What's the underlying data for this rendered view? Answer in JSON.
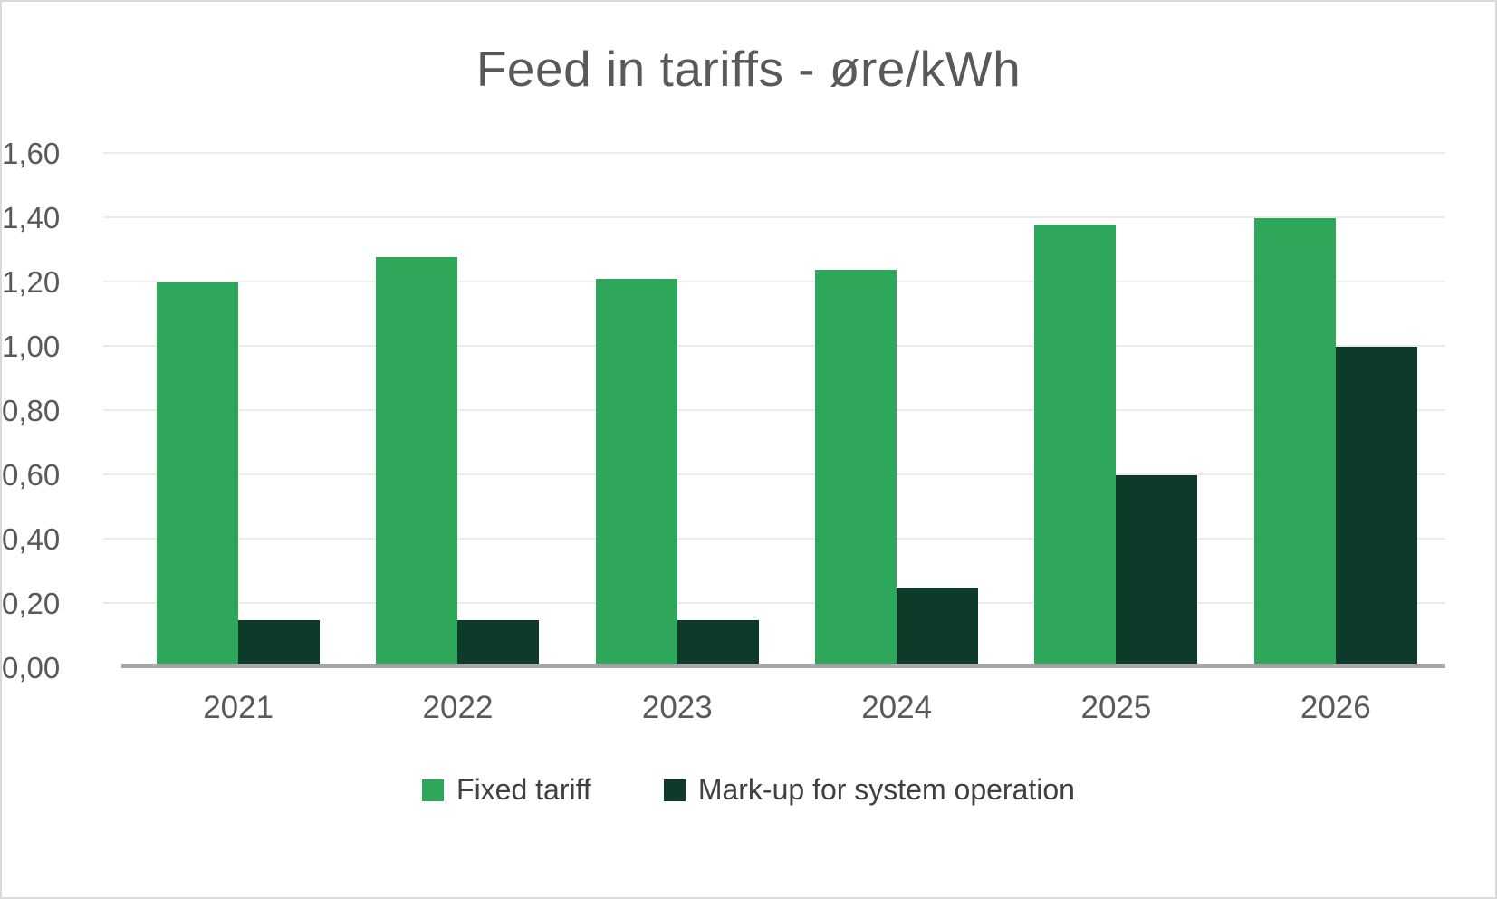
{
  "title": "Feed in tariffs - øre/kWh",
  "chart_data": {
    "type": "bar",
    "title": "Feed in tariffs - øre/kWh",
    "categories": [
      "2021",
      "2022",
      "2023",
      "2024",
      "2025",
      "2026"
    ],
    "series": [
      {
        "name": "Fixed tariff",
        "color": "#2ea75b",
        "values": [
          1.2,
          1.28,
          1.21,
          1.24,
          1.38,
          1.4
        ]
      },
      {
        "name": "Mark-up for system operation",
        "color": "#0d3b2a",
        "values": [
          0.15,
          0.15,
          0.15,
          0.25,
          0.6,
          1.0
        ]
      }
    ],
    "xlabel": "",
    "ylabel": "",
    "ylim": [
      0,
      1.6
    ],
    "ytick_step": 0.2,
    "ytick_labels": [
      "0,00",
      "0,20",
      "0,40",
      "0,60",
      "0,80",
      "1,00",
      "1,20",
      "1,40",
      "1,60"
    ],
    "grid": true,
    "legend_position": "bottom"
  },
  "colors": {
    "title_text": "#595959",
    "axis_text": "#595959",
    "legend_text": "#404040",
    "gridline": "#ebebeb",
    "baseline": "#a6a6a6",
    "frame_border": "#d9d9d9",
    "background": "#ffffff"
  }
}
